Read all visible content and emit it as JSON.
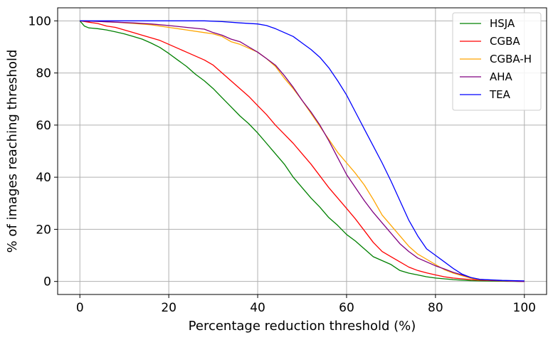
{
  "chart_data": {
    "type": "line",
    "title": "",
    "xlabel": "Percentage reduction threshold (%)",
    "ylabel": "% of images reaching threshold",
    "xlim": [
      -5,
      105
    ],
    "ylim": [
      -5,
      105
    ],
    "xticks": [
      0,
      20,
      40,
      60,
      80,
      100
    ],
    "yticks": [
      0,
      20,
      40,
      60,
      80,
      100
    ],
    "xtick_labels": [
      "0",
      "20",
      "40",
      "60",
      "80",
      "100"
    ],
    "ytick_labels": [
      "0",
      "20",
      "40",
      "60",
      "80",
      "100"
    ],
    "grid": true,
    "legend_position": "top-right",
    "series": [
      {
        "name": "HSJA",
        "color": "#008000",
        "x": [
          0,
          1,
          2,
          4,
          6,
          8,
          10,
          12,
          14,
          16,
          18,
          20,
          22,
          24,
          26,
          28,
          30,
          32,
          34,
          36,
          38,
          40,
          42,
          44,
          46,
          48,
          50,
          52,
          54,
          56,
          58,
          60,
          62,
          64,
          66,
          68,
          70,
          72,
          74,
          76,
          78,
          80,
          82,
          84,
          86,
          88,
          90,
          95,
          100
        ],
        "y": [
          100,
          98,
          97.3,
          97,
          96.5,
          95.8,
          95,
          94,
          93,
          91.5,
          89.8,
          87.5,
          85,
          82.5,
          79.5,
          77,
          74,
          70.5,
          67,
          63.5,
          60.5,
          57,
          53,
          49,
          45,
          40,
          36,
          32,
          28.5,
          24.5,
          21.5,
          18,
          15.5,
          12.5,
          9.5,
          8,
          6.5,
          4.2,
          3.2,
          2.5,
          1.8,
          1.3,
          1.0,
          0.7,
          0.5,
          0.3,
          0.2,
          0.1,
          0
        ]
      },
      {
        "name": "CGBA",
        "color": "#ff0000",
        "x": [
          0,
          2,
          4,
          6,
          8,
          10,
          12,
          14,
          16,
          18,
          20,
          22,
          24,
          26,
          28,
          30,
          32,
          34,
          36,
          38,
          40,
          42,
          44,
          46,
          48,
          50,
          52,
          54,
          56,
          58,
          60,
          62,
          64,
          66,
          68,
          70,
          72,
          74,
          76,
          78,
          80,
          82,
          84,
          86,
          88,
          90,
          95,
          100
        ],
        "y": [
          100,
          99.5,
          99,
          98,
          97.5,
          96.5,
          95.5,
          94.5,
          93.5,
          92.5,
          91,
          89.5,
          88,
          86.5,
          85,
          83,
          80,
          77,
          74,
          71,
          67.5,
          64,
          60,
          56.5,
          53,
          49,
          45,
          40.5,
          36,
          32,
          28,
          24,
          19.5,
          15,
          11.5,
          9.5,
          7.5,
          5.5,
          4.2,
          3.3,
          2.5,
          1.8,
          1.3,
          1.0,
          0.7,
          0.5,
          0.2,
          0
        ]
      },
      {
        "name": "CGBA-H",
        "color": "#ffa500",
        "x": [
          0,
          4,
          8,
          12,
          16,
          20,
          24,
          28,
          30,
          32,
          34,
          36,
          38,
          40,
          42,
          44,
          46,
          48,
          50,
          52,
          54,
          56,
          58,
          60,
          62,
          64,
          66,
          68,
          70,
          72,
          74,
          76,
          78,
          80,
          82,
          84,
          86,
          88,
          90,
          95,
          100
        ],
        "y": [
          100,
          99.8,
          99.5,
          99,
          98.5,
          97.5,
          96.5,
          95.5,
          95,
          94,
          92,
          91,
          89.5,
          88,
          85.5,
          82.5,
          78,
          74,
          69.5,
          64.5,
          59.5,
          54.5,
          49.5,
          45.5,
          41.5,
          37,
          31.5,
          25.5,
          21.5,
          17.5,
          13.5,
          10.5,
          8.5,
          6.5,
          4.5,
          3.2,
          2.2,
          1.2,
          0.7,
          0.3,
          0
        ]
      },
      {
        "name": "AHA",
        "color": "#800080",
        "x": [
          0,
          4,
          8,
          12,
          16,
          20,
          24,
          28,
          30,
          32,
          34,
          36,
          38,
          40,
          42,
          44,
          46,
          48,
          50,
          52,
          54,
          56,
          58,
          60,
          62,
          64,
          66,
          68,
          70,
          72,
          74,
          76,
          78,
          80,
          82,
          84,
          86,
          88,
          90,
          95,
          100
        ],
        "y": [
          100,
          99.8,
          99.5,
          99.2,
          98.8,
          98.2,
          97.5,
          96.8,
          95.5,
          94.5,
          93,
          92,
          90,
          88,
          85.5,
          83,
          79,
          74.5,
          69.5,
          65,
          60,
          54,
          47.5,
          41,
          36,
          31,
          26.5,
          22.5,
          18.5,
          14.5,
          11.5,
          9,
          7.5,
          6,
          4.8,
          3.5,
          2.5,
          1.5,
          0.8,
          0.3,
          0
        ]
      },
      {
        "name": "TEA",
        "color": "#0000ff",
        "x": [
          0,
          5,
          10,
          15,
          20,
          25,
          28,
          32,
          36,
          40,
          42,
          44,
          46,
          48,
          50,
          52,
          54,
          56,
          58,
          60,
          62,
          64,
          66,
          68,
          70,
          72,
          74,
          76,
          78,
          80,
          82,
          84,
          86,
          88,
          90,
          95,
          100
        ],
        "y": [
          100,
          100,
          100,
          100,
          100,
          100,
          100,
          99.7,
          99.2,
          98.8,
          98.2,
          97,
          95.5,
          94,
          91.5,
          89,
          86,
          82,
          77,
          71.5,
          65,
          58.5,
          52,
          45.5,
          38.5,
          31,
          23.5,
          17.5,
          12.5,
          10,
          7.5,
          5,
          2.8,
          1.5,
          0.8,
          0.4,
          0.2
        ]
      }
    ]
  }
}
